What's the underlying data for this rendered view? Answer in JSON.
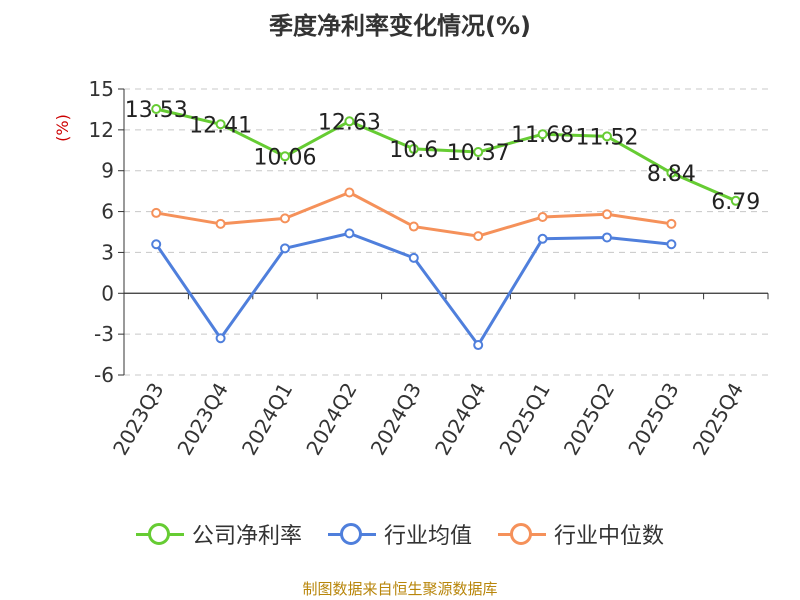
{
  "chart_data": {
    "type": "line",
    "title": "季度净利率变化情况(%)",
    "ylabel": "(%)",
    "ylim": [
      -6,
      15
    ],
    "yticks": [
      -6,
      -3,
      0,
      3,
      6,
      9,
      12,
      15
    ],
    "grid": true,
    "legend_position": "bottom",
    "categories": [
      "2023Q3",
      "2023Q4",
      "2024Q1",
      "2024Q2",
      "2024Q3",
      "2024Q4",
      "2025Q1",
      "2025Q2",
      "2025Q3",
      "2025Q4"
    ],
    "series": [
      {
        "name": "公司净利率",
        "color": "#66cc33",
        "values": [
          13.53,
          12.41,
          10.06,
          12.63,
          10.6,
          10.37,
          11.68,
          11.52,
          8.84,
          6.79
        ],
        "labels": [
          "13.53",
          "12.41",
          "10.06",
          "12.63",
          "10.6",
          "10.37",
          "11.68",
          "11.52",
          "8.84",
          "6.79"
        ]
      },
      {
        "name": "行业均值",
        "color": "#4f7fdc",
        "values": [
          3.6,
          -3.3,
          3.3,
          4.4,
          2.6,
          -3.8,
          4.0,
          4.1,
          3.6,
          null
        ]
      },
      {
        "name": "行业中位数",
        "color": "#f5915a",
        "values": [
          5.9,
          5.1,
          5.5,
          7.4,
          4.9,
          4.2,
          5.6,
          5.8,
          5.1,
          null
        ]
      }
    ]
  },
  "source": "制图数据来自恒生聚源数据库"
}
